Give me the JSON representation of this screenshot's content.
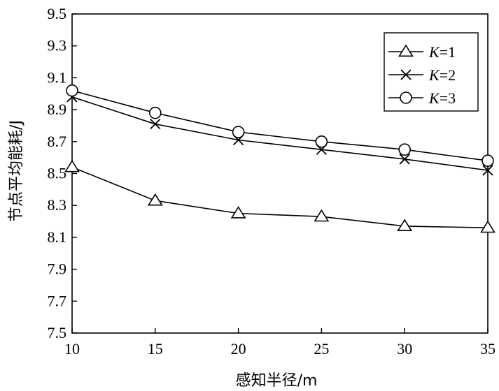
{
  "chart_data": {
    "type": "line",
    "xlabel": "感知半径/m",
    "ylabel": "节点平均能耗/J",
    "x": [
      10,
      15,
      20,
      25,
      30,
      35
    ],
    "xlim": [
      10,
      35
    ],
    "ylim": [
      7.5,
      9.5
    ],
    "xticks": [
      "10",
      "15",
      "20",
      "25",
      "30",
      "35"
    ],
    "yticks": [
      "7.5",
      "7.7",
      "7.9",
      "8.1",
      "8.3",
      "8.5",
      "8.7",
      "8.9",
      "9.1",
      "9.3",
      "9.5"
    ],
    "grid": false,
    "legend_position": "top-right",
    "series": [
      {
        "name": "K=1",
        "legend_var": "K",
        "legend_val": "=1",
        "marker": "triangle",
        "values": [
          8.54,
          8.33,
          8.25,
          8.23,
          8.17,
          8.16
        ]
      },
      {
        "name": "K=2",
        "legend_var": "K",
        "legend_val": "=2",
        "marker": "cross",
        "values": [
          8.98,
          8.81,
          8.71,
          8.65,
          8.59,
          8.52
        ]
      },
      {
        "name": "K=3",
        "legend_var": "K",
        "legend_val": "=3",
        "marker": "circle",
        "values": [
          9.02,
          8.88,
          8.76,
          8.7,
          8.65,
          8.58
        ]
      }
    ]
  }
}
